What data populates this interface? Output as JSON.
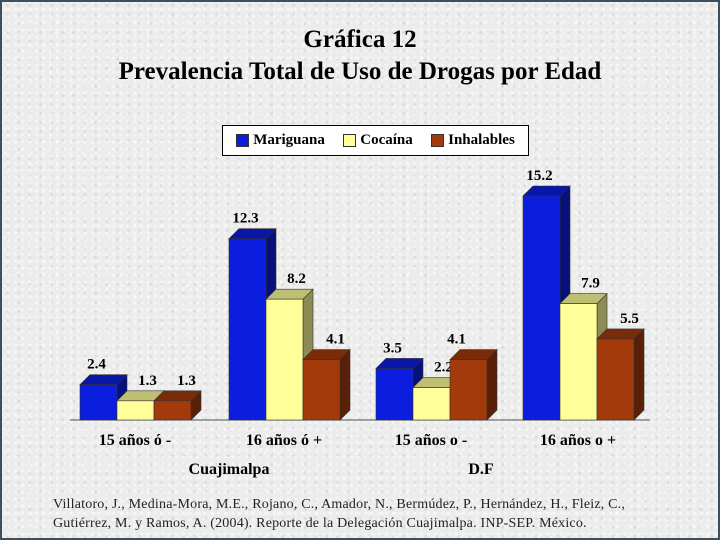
{
  "title": {
    "line1": "Gráfica 12",
    "line2": "Prevalencia Total de Uso de Drogas por Edad"
  },
  "chart_data": {
    "type": "bar",
    "title": "Gráfica 12 Prevalencia Total de Uso de Drogas por Edad",
    "categories": [
      "15 años ó -",
      "16 años ó +",
      "15 años o -",
      "16 años o +"
    ],
    "groups": [
      {
        "label": "Cuajimalpa",
        "categories": [
          0,
          1
        ]
      },
      {
        "label": "D.F",
        "categories": [
          2,
          3
        ]
      }
    ],
    "series": [
      {
        "name": "Mariguana",
        "color": "#0b1ee0",
        "values": [
          2.4,
          12.3,
          3.5,
          15.2
        ]
      },
      {
        "name": "Cocaína",
        "color": "#ffff99",
        "values": [
          1.3,
          8.2,
          2.2,
          7.9
        ]
      },
      {
        "name": "Inhalables",
        "color": "#a33a0c",
        "values": [
          1.3,
          4.1,
          4.1,
          5.5
        ]
      }
    ],
    "value_labels": [
      [
        "2.4",
        "12.3",
        "3.5",
        "15.2"
      ],
      [
        "1.3",
        "8.2",
        "2.2",
        "7.9"
      ],
      [
        "1.3",
        "4.1",
        "4.1",
        "5.5"
      ]
    ],
    "ylim": [
      0,
      16
    ],
    "three_d": true,
    "grid": false,
    "legend_position": "top-center"
  },
  "source": "Villatoro, J., Medina-Mora, M.E., Rojano, C., Amador, N., Bermúdez, P., Hernández, H., Fleiz, C., Gutiérrez, M. y Ramos, A. (2004). Reporte de la Delegación Cuajimalpa. INP-SEP. México."
}
